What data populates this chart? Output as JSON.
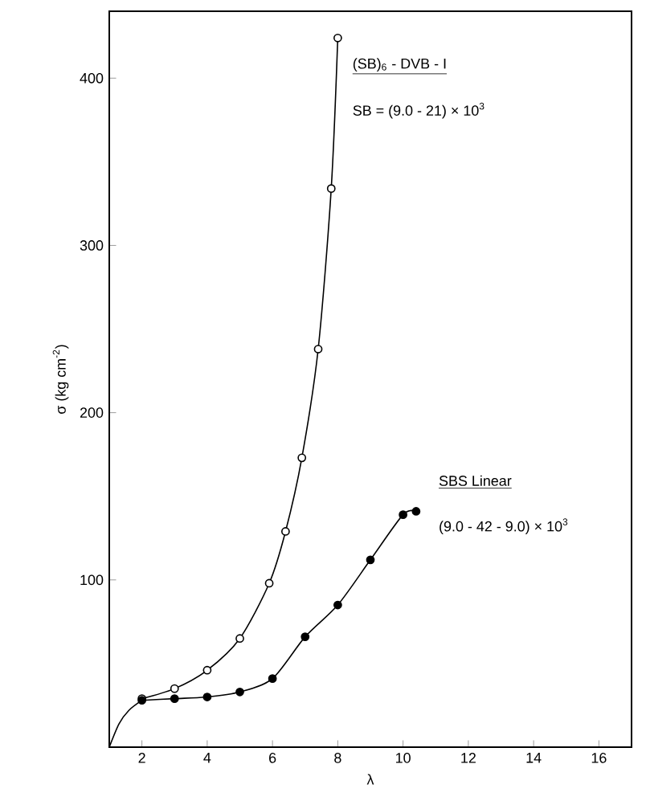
{
  "chart_data": {
    "type": "line",
    "xlabel": "λ",
    "ylabel": "σ   (kg cm$^{-2}$)",
    "xlim": [
      1,
      17
    ],
    "ylim": [
      0,
      440
    ],
    "xticks": [
      2,
      4,
      6,
      8,
      10,
      12,
      14,
      16
    ],
    "yticks": [
      100,
      200,
      300,
      400
    ],
    "grid": false,
    "legend": false,
    "line_style": "solid",
    "series": [
      {
        "name": "(SB)$_{6}$ - DVB - I",
        "color": "#000000",
        "marker": "circle",
        "x": [
          2,
          3,
          4,
          5,
          5.9,
          6.4,
          6.9,
          7.4,
          7.8,
          8.0
        ],
        "values": [
          29,
          35,
          46,
          65,
          98,
          129,
          173,
          238,
          334,
          424
        ]
      },
      {
        "name": "SBS     Linear",
        "color": "#000000",
        "marker": "circle",
        "x": [
          2,
          3,
          4,
          5,
          6,
          7,
          8,
          9,
          10,
          10.4
        ],
        "values": [
          28,
          29,
          30,
          33,
          41,
          66,
          85,
          112,
          139,
          141
        ]
      },
      {
        "color": "#000000",
        "marker": "none",
        "x": [
          1,
          1.3,
          1.6,
          2
        ],
        "values": [
          0,
          14,
          22,
          28
        ]
      }
    ],
    "annotations": [
      "SB = (9.0 - 21) × 10$^{3}$",
      "(9.0 - 42 - 9.0) × 10$^{3}$"
    ]
  }
}
